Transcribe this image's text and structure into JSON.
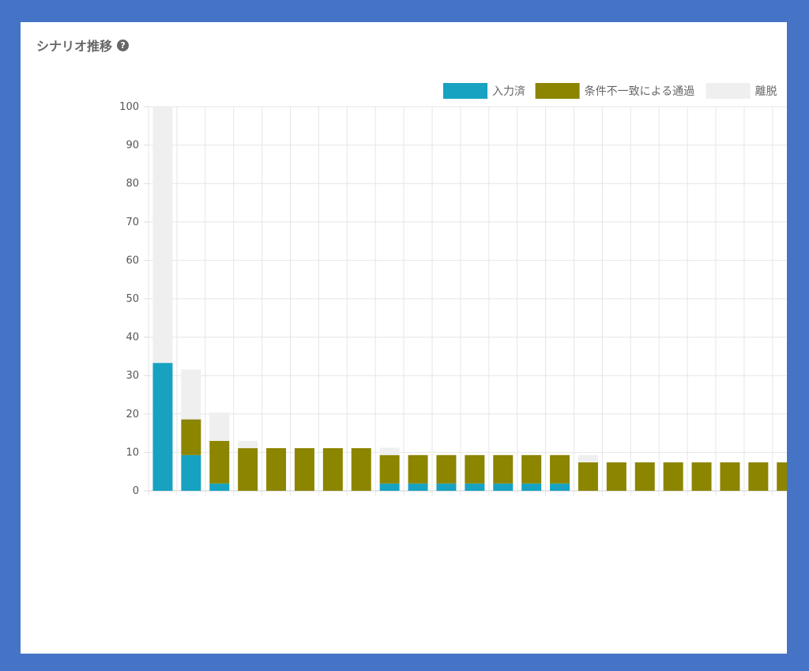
{
  "header": {
    "title": "シナリオ推移",
    "help_icon": "question-circle-icon"
  },
  "colors": {
    "input_done": "#17a2c1",
    "passed": "#8c8500",
    "dropped": "#efefef",
    "frame": "#4574c7"
  },
  "chart_data": {
    "type": "bar",
    "stacked": true,
    "title": "",
    "xlabel": "",
    "ylabel": "",
    "ylim": [
      0,
      100
    ],
    "yticks": [
      0,
      10,
      20,
      30,
      40,
      50,
      60,
      70,
      80,
      90,
      100
    ],
    "grid": true,
    "legend_position": "top-right",
    "series": [
      {
        "name": "入力済",
        "color": "#17a2c1",
        "values": [
          33.3,
          9.3,
          1.9,
          0,
          0,
          0,
          0,
          0,
          1.9,
          1.9,
          1.9,
          1.9,
          1.9,
          1.9,
          1.9,
          0,
          0,
          0,
          0,
          0,
          0,
          0,
          0
        ]
      },
      {
        "name": "条件不一致による通過",
        "color": "#8c8500",
        "values": [
          0,
          9.3,
          11.1,
          11.1,
          11.1,
          11.1,
          11.1,
          11.1,
          7.4,
          7.4,
          7.4,
          7.4,
          7.4,
          7.4,
          7.4,
          7.4,
          7.4,
          7.4,
          7.4,
          7.4,
          7.4,
          7.4,
          7.4
        ]
      },
      {
        "name": "離脱",
        "color": "#efefef",
        "values": [
          66.7,
          13.0,
          7.4,
          1.9,
          0,
          0,
          0,
          0,
          1.9,
          0,
          0,
          0,
          0,
          0,
          0,
          1.9,
          0,
          0,
          0,
          0,
          0,
          0,
          0
        ]
      }
    ]
  }
}
